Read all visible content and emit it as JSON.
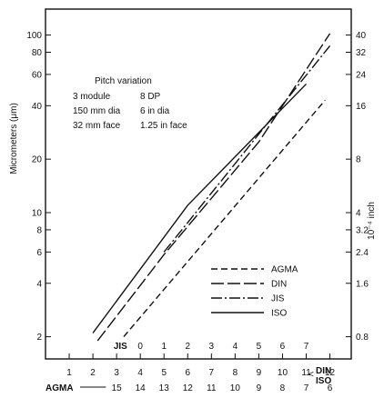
{
  "chart_data": {
    "type": "line",
    "title": "",
    "ylabel": "Micrometers (μm)",
    "y2label": "10⁻⁴ inch",
    "yscale": "log",
    "ylim": [
      1.5,
      140
    ],
    "xlim": [
      0,
      12.9
    ],
    "y_ticks": [
      2,
      4,
      6,
      8,
      10,
      20,
      40,
      60,
      80,
      100
    ],
    "y2_ticks": [
      "0.8",
      "1.6",
      "2.4",
      "3.2",
      "4",
      "8",
      "16",
      "24",
      "32",
      "40"
    ],
    "x_scales": [
      {
        "name": "DIN ISO",
        "label": "DIN\nISO",
        "ticks": [
          1,
          2,
          3,
          4,
          5,
          6,
          7,
          8,
          9,
          10,
          11,
          12
        ]
      },
      {
        "name": "JIS",
        "label": "JIS",
        "ticks": [
          0,
          1,
          2,
          3,
          4,
          5,
          6,
          7
        ]
      },
      {
        "name": "AGMA",
        "label": "AGMA",
        "ticks": [
          15,
          14,
          13,
          12,
          11,
          10,
          9,
          8,
          7,
          6
        ]
      }
    ],
    "annotation": {
      "heading": "Pitch variation",
      "rows": [
        [
          "3 module",
          "8 DP"
        ],
        [
          "150 mm dia",
          "6 in dia"
        ],
        [
          "32 mm face",
          "1.25 in face"
        ]
      ]
    },
    "legend_position": "bottom-right",
    "series": [
      {
        "name": "AGMA",
        "style": "dashed",
        "x": [
          3.3,
          11.8
        ],
        "y": [
          2.0,
          43
        ]
      },
      {
        "name": "DIN",
        "style": "longdash",
        "x": [
          2.2,
          5.0,
          9.0,
          12.0
        ],
        "y": [
          1.9,
          5.8,
          25,
          102
        ]
      },
      {
        "name": "JIS",
        "style": "dashdot",
        "x": [
          5.0,
          12.0
        ],
        "y": [
          6.0,
          87
        ]
      },
      {
        "name": "ISO",
        "style": "solid",
        "x": [
          2.0,
          6.0,
          11.0
        ],
        "y": [
          2.1,
          11,
          53
        ]
      }
    ]
  }
}
